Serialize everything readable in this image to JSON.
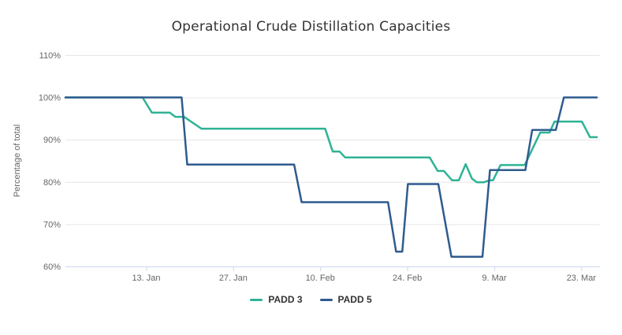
{
  "title": "Operational Crude Distillation Capacities",
  "chart_data": {
    "type": "line",
    "title": "Operational Crude Distillation Capacities",
    "xlabel": "",
    "ylabel": "Percentage of total",
    "ylim": [
      60,
      110
    ],
    "yticks": [
      {
        "value": 60,
        "label": "60%"
      },
      {
        "value": 70,
        "label": "70%"
      },
      {
        "value": 80,
        "label": "80%"
      },
      {
        "value": 90,
        "label": "90%"
      },
      {
        "value": 100,
        "label": "100%"
      },
      {
        "value": 110,
        "label": "110%"
      }
    ],
    "grid": "horizontal-only",
    "legend_position": "bottom-center",
    "x_axis": {
      "unit": "days",
      "day_zero_date": "31. Dec",
      "range_days": [
        0,
        86
      ],
      "series_end_day": 85.5,
      "ticks": [
        {
          "day": 13,
          "label": "13. Jan"
        },
        {
          "day": 27,
          "label": "27. Jan"
        },
        {
          "day": 41,
          "label": "10. Feb"
        },
        {
          "day": 55,
          "label": "24. Feb"
        },
        {
          "day": 69,
          "label": "9. Mar"
        },
        {
          "day": 83,
          "label": "23. Mar"
        }
      ]
    },
    "series": [
      {
        "name": "PADD 3",
        "color": "#2fb394",
        "points": [
          [
            0,
            100
          ],
          [
            12.4,
            100
          ],
          [
            13.9,
            96.4
          ],
          [
            16.8,
            96.4
          ],
          [
            17.7,
            95.4
          ],
          [
            19.1,
            95.4
          ],
          [
            21.9,
            92.6
          ],
          [
            41.8,
            92.6
          ],
          [
            43,
            87.2
          ],
          [
            44.1,
            87.2
          ],
          [
            45,
            85.8
          ],
          [
            58.6,
            85.8
          ],
          [
            59.9,
            82.6
          ],
          [
            60.9,
            82.6
          ],
          [
            62.2,
            80.4
          ],
          [
            63.3,
            80.4
          ],
          [
            64.4,
            84.2
          ],
          [
            65.4,
            80.8
          ],
          [
            66.2,
            79.9
          ],
          [
            67.3,
            79.9
          ],
          [
            68.2,
            80.4
          ],
          [
            68.8,
            80.4
          ],
          [
            70,
            84
          ],
          [
            73.9,
            84
          ],
          [
            76.4,
            91.7
          ],
          [
            77.9,
            91.7
          ],
          [
            78.7,
            94.3
          ],
          [
            83.1,
            94.3
          ],
          [
            84.4,
            90.6
          ],
          [
            85.5,
            90.6
          ]
        ],
        "dates": [
          "Dec 31",
          "Jan 12",
          "Jan 14",
          "Jan 17",
          "Jan 18",
          "Jan 19",
          "Jan 22",
          "Feb 11",
          "Feb 12",
          "Feb 13",
          "Feb 14",
          "Feb 28",
          "Feb 29",
          "Mar 1",
          "Mar 2",
          "Mar 3",
          "Mar 4",
          "Mar 5",
          "Mar 6",
          "Mar 7",
          "Mar 8",
          "Mar 9",
          "Mar 10",
          "Mar 14",
          "Mar 16",
          "Mar 18",
          "Mar 19",
          "Mar 23",
          "Mar 24",
          "Mar 26"
        ]
      },
      {
        "name": "PADD 5",
        "color": "#2f5b8f",
        "points": [
          [
            0,
            100
          ],
          [
            18.7,
            100
          ],
          [
            19.6,
            84.1
          ],
          [
            36.8,
            84.1
          ],
          [
            38,
            75.2
          ],
          [
            51.9,
            75.2
          ],
          [
            53.2,
            63.5
          ],
          [
            54.2,
            63.5
          ],
          [
            55.1,
            79.5
          ],
          [
            60,
            79.5
          ],
          [
            62.1,
            62.3
          ],
          [
            67.1,
            62.3
          ],
          [
            68.3,
            82.8
          ],
          [
            74,
            82.8
          ],
          [
            75.1,
            92.3
          ],
          [
            78.9,
            92.3
          ],
          [
            80.2,
            100
          ],
          [
            85.5,
            100
          ]
        ],
        "dates": [
          "Dec 31",
          "Jan 19",
          "Jan 20",
          "Feb 6",
          "Feb 7",
          "Feb 21",
          "Feb 22",
          "Feb 23",
          "Feb 24",
          "Feb 29",
          "Mar 2",
          "Mar 7",
          "Mar 8",
          "Mar 14",
          "Mar 15",
          "Mar 19",
          "Mar 20",
          "Mar 26"
        ]
      }
    ],
    "styles": {
      "grid_color": "#e6e6e6",
      "axis_color": "#ccd6eb",
      "tick_label_color": "#666666",
      "axis_title_color": "#666666",
      "title_color": "#333333",
      "legend_text_color": "#333333",
      "background": "#ffffff"
    }
  }
}
